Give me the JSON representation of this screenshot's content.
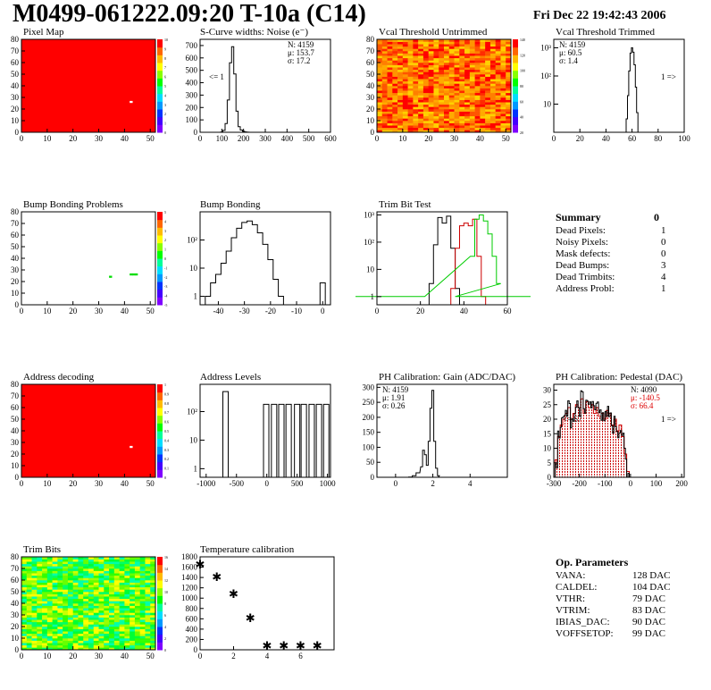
{
  "header": {
    "title": "M0499-061222.09:20 T-10a (C14)",
    "date": "Fri Dec 22 19:42:43 2006"
  },
  "colors": {
    "hist_line": "#000000",
    "red_fill": "#ff0000",
    "green_hist": "#00cc00",
    "red_hist": "#cc0000"
  },
  "summary": {
    "title": "Summary",
    "total": "0",
    "rows": [
      {
        "label": "Dead Pixels:",
        "value": "1"
      },
      {
        "label": "Noisy Pixels:",
        "value": "0"
      },
      {
        "label": "Mask defects:",
        "value": "0"
      },
      {
        "label": "Dead Bumps:",
        "value": "3"
      },
      {
        "label": "Dead Trimbits:",
        "value": "4"
      },
      {
        "label": "Address Probl:",
        "value": "1"
      }
    ]
  },
  "op_params": {
    "title": "Op. Parameters",
    "rows": [
      {
        "label": "VANA:",
        "value": "128 DAC"
      },
      {
        "label": "CALDEL:",
        "value": "104 DAC"
      },
      {
        "label": "VTHR:",
        "value": "79 DAC"
      },
      {
        "label": "VTRIM:",
        "value": "83 DAC"
      },
      {
        "label": "IBIAS_DAC:",
        "value": "90 DAC"
      },
      {
        "label": "VOFFSETOP:",
        "value": "99 DAC"
      }
    ]
  },
  "chart_data": [
    {
      "id": "pixel_map",
      "type": "heatmap",
      "title": "Pixel Map",
      "xlim": [
        0,
        52
      ],
      "ylim": [
        0,
        80
      ],
      "xticks": [
        "0",
        "10",
        "20",
        "30",
        "40",
        "50"
      ],
      "yticks": [
        "0",
        "10",
        "20",
        "30",
        "40",
        "50",
        "60",
        "70",
        "80"
      ],
      "palette": "uniform-red",
      "zlim": [
        0,
        10
      ],
      "zticks": [
        "0",
        "1",
        "2",
        "3",
        "4",
        "5",
        "6",
        "7",
        "8",
        "9",
        "10"
      ],
      "defects": [
        {
          "col": 42,
          "row": 26,
          "color": "white"
        }
      ]
    },
    {
      "id": "noise",
      "type": "bar",
      "title": "S-Curve widths: Noise (e⁻)",
      "xlim": [
        0,
        600
      ],
      "ylim": [
        0,
        750
      ],
      "xticks": [
        "0",
        "100",
        "200",
        "300",
        "400",
        "500",
        "600"
      ],
      "yticks": [
        "0",
        "100",
        "200",
        "300",
        "400",
        "500",
        "600",
        "700"
      ],
      "stats": {
        "n": "N: 4159",
        "mu": "μ: 153.7",
        "sigma": "σ: 17.2"
      },
      "annotation": "<= 1",
      "x": [
        100,
        110,
        120,
        130,
        140,
        150,
        160,
        170,
        180,
        190,
        200,
        210,
        220,
        230
      ],
      "values": [
        2,
        15,
        70,
        260,
        560,
        690,
        470,
        170,
        45,
        18,
        8,
        3,
        1,
        0
      ]
    },
    {
      "id": "vcal_untrimmed",
      "type": "heatmap",
      "title": "Vcal Threshold Untrimmed",
      "xlim": [
        0,
        52
      ],
      "ylim": [
        0,
        80
      ],
      "xticks": [
        "0",
        "10",
        "20",
        "30",
        "40",
        "50"
      ],
      "yticks": [
        "0",
        "10",
        "20",
        "30",
        "40",
        "50",
        "60",
        "70",
        "80"
      ],
      "palette": "noisy-orange-red",
      "zlim": [
        0,
        140
      ],
      "zticks": [
        "20",
        "40",
        "60",
        "80",
        "100",
        "120",
        "140"
      ]
    },
    {
      "id": "vcal_trimmed",
      "type": "bar",
      "title": "Vcal Threshold Trimmed",
      "xlim": [
        0,
        100
      ],
      "ylog": true,
      "ylim": [
        1,
        2000
      ],
      "xticks": [
        "0",
        "20",
        "40",
        "60",
        "80",
        "100"
      ],
      "yticks": [
        "10",
        "10²",
        "10³"
      ],
      "stats": {
        "n": "N: 4159",
        "mu": "μ: 60.5",
        "sigma": "σ: 1.4"
      },
      "annotation": "1 =>",
      "x": [
        55,
        56,
        57,
        58,
        59,
        60,
        61,
        62,
        63,
        64,
        65,
        66
      ],
      "values": [
        1,
        3,
        20,
        150,
        650,
        1000,
        700,
        250,
        40,
        5,
        1,
        0
      ]
    },
    {
      "id": "bump_problems",
      "type": "heatmap",
      "title": "Bump Bonding Problems",
      "xlim": [
        0,
        52
      ],
      "ylim": [
        0,
        80
      ],
      "xticks": [
        "0",
        "10",
        "20",
        "30",
        "40",
        "50"
      ],
      "yticks": [
        "0",
        "10",
        "20",
        "30",
        "40",
        "50",
        "60",
        "70",
        "80"
      ],
      "palette": "white",
      "zlim": [
        -5,
        5
      ],
      "zticks": [
        "-5",
        "-4",
        "-3",
        "-2",
        "-1",
        "0",
        "1",
        "2",
        "3",
        "4",
        "5"
      ],
      "defects": [
        {
          "col": 34,
          "row": 24,
          "color": "green"
        },
        {
          "col": 42,
          "row": 26,
          "color": "green"
        },
        {
          "col": 43,
          "row": 26,
          "color": "green"
        },
        {
          "col": 44,
          "row": 26,
          "color": "green"
        }
      ]
    },
    {
      "id": "bump_bonding",
      "type": "bar",
      "title": "Bump Bonding",
      "xlim": [
        -47,
        3
      ],
      "ylog": true,
      "ylim": [
        0.5,
        1000
      ],
      "xticks": [
        "-40",
        "-30",
        "-20",
        "-10",
        "0"
      ],
      "yticks": [
        "1",
        "10",
        "10²"
      ],
      "x": [
        -44,
        -42,
        -40,
        -38,
        -36,
        -34,
        -32,
        -30,
        -28,
        -26,
        -24,
        -22,
        -20,
        -18,
        -16,
        -14,
        -12,
        -10,
        -8,
        -6,
        -4,
        -2,
        0
      ],
      "values": [
        1,
        3,
        6,
        15,
        40,
        120,
        260,
        420,
        470,
        350,
        180,
        70,
        20,
        4,
        1,
        0,
        0,
        0,
        0,
        0,
        0,
        0,
        3
      ]
    },
    {
      "id": "trim_bit_test",
      "type": "line",
      "title": "Trim Bit Test",
      "xlim": [
        0,
        60
      ],
      "ylog": true,
      "ylim": [
        0.5,
        1300
      ],
      "xticks": [
        "0",
        "20",
        "40",
        "60"
      ],
      "yticks": [
        "1",
        "10",
        "10²",
        "10³"
      ],
      "series": [
        {
          "color": "black",
          "x": [
            25,
            27,
            29,
            31,
            33,
            35,
            37
          ],
          "values": [
            3,
            80,
            800,
            500,
            900,
            60,
            2
          ]
        },
        {
          "color": "red",
          "x": [
            35,
            37,
            39,
            41,
            43,
            45,
            47,
            49
          ],
          "values": [
            2,
            60,
            400,
            500,
            400,
            700,
            30,
            1
          ]
        },
        {
          "color": "green",
          "x": [
            0,
            44,
            46,
            48,
            50,
            52,
            54,
            56,
            58
          ],
          "values": [
            1,
            30,
            700,
            1000,
            600,
            200,
            30,
            3,
            1
          ]
        }
      ]
    },
    {
      "id": "address_decoding",
      "type": "heatmap",
      "title": "Address decoding",
      "xlim": [
        0,
        52
      ],
      "ylim": [
        0,
        80
      ],
      "xticks": [
        "0",
        "10",
        "20",
        "30",
        "40",
        "50"
      ],
      "yticks": [
        "0",
        "10",
        "20",
        "30",
        "40",
        "50",
        "60",
        "70",
        "80"
      ],
      "palette": "uniform-red",
      "zlim": [
        0,
        1
      ],
      "zticks": [
        "0",
        "0.1",
        "0.2",
        "0.3",
        "0.4",
        "0.5",
        "0.6",
        "0.7",
        "0.8",
        "0.9",
        "1"
      ],
      "defects": [
        {
          "col": 42,
          "row": 26,
          "color": "white"
        }
      ]
    },
    {
      "id": "address_levels",
      "type": "bar",
      "title": "Address Levels",
      "xlim": [
        -1100,
        1050
      ],
      "ylog": true,
      "ylim": [
        0.5,
        900
      ],
      "xticks": [
        "-1000",
        "-500",
        "0",
        "500",
        "1000"
      ],
      "yticks": [
        "1",
        "10",
        "10²"
      ],
      "x": [
        -680,
        -10,
        120,
        240,
        360,
        500,
        610,
        740,
        860,
        980
      ],
      "values": [
        500,
        180,
        180,
        180,
        180,
        180,
        180,
        180,
        180,
        180
      ]
    },
    {
      "id": "ph_gain",
      "type": "bar",
      "title": "PH Calibration: Gain (ADC/DAC)",
      "xlim": [
        -1,
        6
      ],
      "ylim": [
        0,
        310
      ],
      "xticks": [
        "0",
        "2",
        "4"
      ],
      "yticks": [
        "0",
        "50",
        "100",
        "150",
        "200",
        "250",
        "300"
      ],
      "stats": {
        "n": "N: 4159",
        "mu": "μ: 1.91",
        "sigma": "σ: 0.26"
      },
      "x": [
        0.8,
        1.0,
        1.2,
        1.4,
        1.5,
        1.6,
        1.7,
        1.8,
        1.9,
        2.0,
        2.1,
        2.2,
        2.3,
        2.4
      ],
      "values": [
        1,
        5,
        15,
        35,
        90,
        75,
        40,
        120,
        230,
        290,
        120,
        30,
        5,
        0
      ]
    },
    {
      "id": "ph_pedestal",
      "type": "bar",
      "title": "PH Calibration: Pedestal (DAC)",
      "xlim": [
        -300,
        210
      ],
      "ylim": [
        0,
        32
      ],
      "xticks": [
        "-300",
        "-200",
        "-100",
        "0",
        "100",
        "200"
      ],
      "yticks": [
        "0",
        "5",
        "10",
        "15",
        "20",
        "25",
        "30"
      ],
      "stats": {
        "n": "N: 4090",
        "mu": "μ: -140.5",
        "sigma": "σ: 66.4"
      },
      "annotation_left": "<= 67",
      "annotation_right": "1 =>",
      "x": [
        -290,
        -280,
        -270,
        -260,
        -250,
        -240,
        -230,
        -220,
        -210,
        -200,
        -190,
        -180,
        -170,
        -160,
        -150,
        -140,
        -130,
        -120,
        -110,
        -100,
        -90,
        -80,
        -70,
        -60,
        -50,
        -40,
        -30,
        -20,
        -10
      ],
      "values": [
        6,
        14,
        18,
        20,
        22,
        24,
        20,
        22,
        25,
        24,
        27,
        22,
        26,
        24,
        25,
        22,
        24,
        21,
        22,
        20,
        23,
        22,
        18,
        20,
        16,
        18,
        14,
        8,
        2
      ]
    },
    {
      "id": "trim_bits",
      "type": "heatmap",
      "title": "Trim Bits",
      "xlim": [
        0,
        52
      ],
      "ylim": [
        0,
        80
      ],
      "xticks": [
        "0",
        "10",
        "20",
        "30",
        "40",
        "50"
      ],
      "yticks": [
        "0",
        "10",
        "20",
        "30",
        "40",
        "50",
        "60",
        "70",
        "80"
      ],
      "palette": "noisy-green",
      "zlim": [
        0,
        16
      ],
      "zticks": [
        "0",
        "2",
        "4",
        "6",
        "8",
        "10",
        "12",
        "14",
        "16"
      ]
    },
    {
      "id": "temperature",
      "type": "scatter",
      "title": "Temperature calibration",
      "xlim": [
        0,
        8
      ],
      "ylim": [
        0,
        1800
      ],
      "xticks": [
        "0",
        "2",
        "4",
        "6"
      ],
      "yticks": [
        "0",
        "200",
        "400",
        "600",
        "800",
        "1000",
        "1200",
        "1400",
        "1600",
        "1800"
      ],
      "x": [
        0,
        1,
        2,
        3,
        4,
        5,
        6,
        7
      ],
      "values": [
        1680,
        1440,
        1110,
        640,
        100,
        100,
        100,
        100
      ]
    }
  ]
}
